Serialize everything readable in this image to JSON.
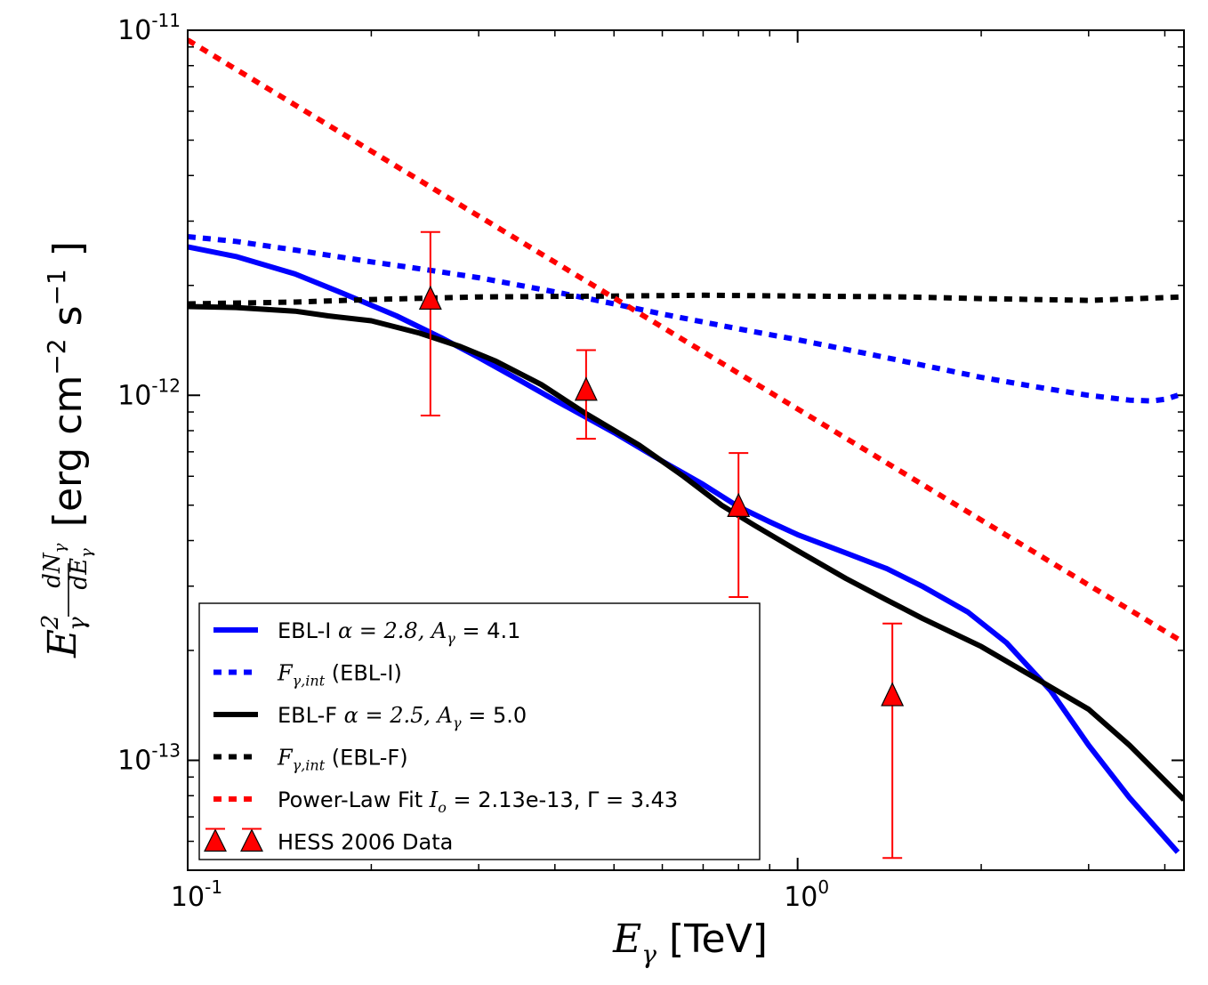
{
  "chart_data": {
    "type": "line",
    "xscale": "log",
    "yscale": "log",
    "xlim": [
      0.1,
      4.3
    ],
    "ylim": [
      5e-14,
      1e-11
    ],
    "xlabel": "E_γ [TeV]",
    "ylabel": "E_γ² dN_γ/dE_γ [erg cm⁻² s⁻¹]",
    "x_ticks": [
      {
        "value": 0.1,
        "base": "10",
        "exp": "-1"
      },
      {
        "value": 1.0,
        "base": "10",
        "exp": "0"
      }
    ],
    "y_ticks": [
      {
        "value": 1e-13,
        "base": "10",
        "exp": "-13"
      },
      {
        "value": 1e-12,
        "base": "10",
        "exp": "-12"
      },
      {
        "value": 1e-11,
        "base": "10",
        "exp": "-11"
      }
    ],
    "legend_position": "lower-left",
    "series": [
      {
        "name": "EBL-I  α = 2.8,  A_γ = 4.1",
        "label_plain": "EBL-I",
        "label_math": "α = 2.8,  A",
        "label_sub": "γ",
        "label_tail": " = 4.1",
        "color": "#0000ff",
        "style": "solid",
        "x": [
          0.1,
          0.12,
          0.15,
          0.18,
          0.22,
          0.26,
          0.3,
          0.35,
          0.4,
          0.5,
          0.6,
          0.7,
          0.8,
          0.9,
          1.0,
          1.2,
          1.4,
          1.6,
          1.9,
          2.2,
          2.6,
          3.0,
          3.5,
          4.2
        ],
        "y": [
          2.55e-12,
          2.4e-12,
          2.15e-12,
          1.9e-12,
          1.65e-12,
          1.44e-12,
          1.27e-12,
          1.1e-12,
          9.7e-13,
          7.9e-13,
          6.6e-13,
          5.7e-13,
          4.95e-13,
          4.5e-13,
          4.15e-13,
          3.7e-13,
          3.35e-13,
          3e-13,
          2.55e-13,
          2.1e-13,
          1.55e-13,
          1.1e-13,
          7.9e-14,
          5.6e-14
        ]
      },
      {
        "name": "F_γ,int (EBL-I)",
        "label_plain": "",
        "label_math": "F",
        "label_sub": "γ,int",
        "label_tail": " (EBL-I)",
        "color": "#0000ff",
        "style": "dotted",
        "x": [
          0.1,
          0.12,
          0.15,
          0.2,
          0.25,
          0.3,
          0.4,
          0.5,
          0.6,
          0.8,
          1.0,
          1.3,
          1.6,
          2.0,
          2.5,
          3.0,
          3.5,
          3.8,
          4.0,
          4.2
        ],
        "y": [
          2.72e-12,
          2.64e-12,
          2.5e-12,
          2.32e-12,
          2.2e-12,
          2.1e-12,
          1.92e-12,
          1.78e-12,
          1.67e-12,
          1.52e-12,
          1.42e-12,
          1.3e-12,
          1.21e-12,
          1.12e-12,
          1.05e-12,
          1e-12,
          9.7e-13,
          9.65e-13,
          9.75e-13,
          1e-12
        ]
      },
      {
        "name": "EBL-F  α = 2.5,  A_γ = 5.0",
        "label_plain": "EBL-F",
        "label_math": "α = 2.5,  A",
        "label_sub": "γ",
        "label_tail": " = 5.0",
        "color": "#000000",
        "style": "solid",
        "x": [
          0.1,
          0.12,
          0.15,
          0.17,
          0.2,
          0.24,
          0.28,
          0.32,
          0.38,
          0.45,
          0.55,
          0.65,
          0.75,
          0.85,
          1.0,
          1.2,
          1.4,
          1.6,
          2.0,
          2.5,
          3.0,
          3.5,
          4.3
        ],
        "y": [
          1.75e-12,
          1.74e-12,
          1.7e-12,
          1.65e-12,
          1.6e-12,
          1.48e-12,
          1.36e-12,
          1.24e-12,
          1.07e-12,
          8.9e-13,
          7.3e-13,
          6e-13,
          5e-13,
          4.4e-13,
          3.75e-13,
          3.15e-13,
          2.75e-13,
          2.45e-13,
          2.05e-13,
          1.65e-13,
          1.38e-13,
          1.1e-13,
          7.8e-14
        ]
      },
      {
        "name": "F_γ,int (EBL-F)",
        "label_plain": "",
        "label_math": "F",
        "label_sub": "γ,int",
        "label_tail": " (EBL-F)",
        "color": "#000000",
        "style": "dotted",
        "x": [
          0.1,
          0.15,
          0.2,
          0.3,
          0.5,
          0.7,
          1.0,
          1.5,
          2.0,
          3.0,
          4.3
        ],
        "y": [
          1.78e-12,
          1.8e-12,
          1.83e-12,
          1.86e-12,
          1.87e-12,
          1.88e-12,
          1.87e-12,
          1.86e-12,
          1.84e-12,
          1.82e-12,
          1.86e-12
        ]
      },
      {
        "name": "Power-Law Fit  I_o = 2.13e-13, Γ = 3.43",
        "label_plain": "Power-Law Fit",
        "label_math": "I",
        "label_sub": "o",
        "label_tail": " = 2.13e-13, Γ = 3.43",
        "color": "#ff0000",
        "style": "dotted",
        "x": [
          0.1,
          4.3
        ],
        "y": [
          9.4e-12,
          2.1e-13
        ],
        "power_law": {
          "I_o": 2.13e-13,
          "Gamma": 3.43,
          "pivot_TeV": 1.0
        }
      }
    ],
    "points": {
      "name": "HESS 2006 Data",
      "color": "#ff0000",
      "marker": "triangle",
      "x": [
        0.25,
        0.45,
        0.8,
        1.43
      ],
      "y": [
        1.83e-12,
        1.03e-12,
        4.95e-13,
        1.5e-13
      ],
      "y_low": [
        8.8e-13,
        7.6e-13,
        2.8e-13,
        5.4e-14
      ],
      "y_high": [
        2.8e-12,
        1.33e-12,
        6.95e-13,
        2.37e-13
      ]
    }
  }
}
